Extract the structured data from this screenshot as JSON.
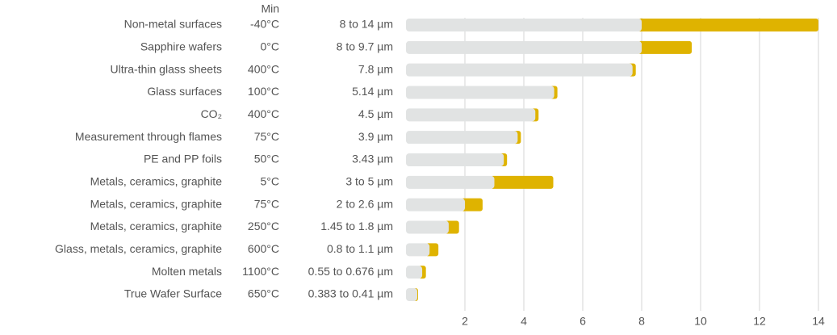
{
  "chart_data": {
    "type": "range-bar",
    "categories": [
      "Non-metal surfaces",
      "Sapphire wafers",
      "Ultra-thin glass sheets",
      "Glass surfaces",
      "CO₂",
      "Measurement through flames",
      "PE and PP foils",
      "Metals, ceramics, graphite",
      "Metals, ceramics, graphite",
      "Metals, ceramics, graphite",
      "Glass, metals, ceramics, graphite",
      "Molten metals",
      "True Wafer Surface"
    ],
    "min_header": "Min",
    "min_temps": [
      "-40°C",
      "0°C",
      "400°C",
      "100°C",
      "400°C",
      "75°C",
      "50°C",
      "5°C",
      "75°C",
      "250°C",
      "600°C",
      "1100°C",
      "650°C"
    ],
    "low": [
      8,
      8,
      7.8,
      5.14,
      4.5,
      3.9,
      3.43,
      3,
      2,
      1.45,
      0.8,
      0.55,
      0.383
    ],
    "high": [
      14,
      9.7,
      null,
      null,
      null,
      null,
      null,
      5,
      2.6,
      1.8,
      1.1,
      0.676,
      0.41
    ],
    "value_labels": [
      "8 to 14 µm",
      "8 to 9.7 µm",
      "7.8 µm",
      "5.14 µm",
      "4.5 µm",
      "3.9 µm",
      "3.43 µm",
      "3 to 5 µm",
      "2 to 2.6 µm",
      "1.45 to 1.8 µm",
      "0.8 to 1.1 µm",
      "0.55 to 0.676 µm",
      "0.383 to 0.41 µm"
    ],
    "base_color": "#e1e3e3",
    "range_color": "#dfb300",
    "xlim": [
      0,
      14
    ],
    "xticks": [
      2,
      4,
      6,
      8,
      10,
      12,
      14
    ],
    "grid": true
  }
}
